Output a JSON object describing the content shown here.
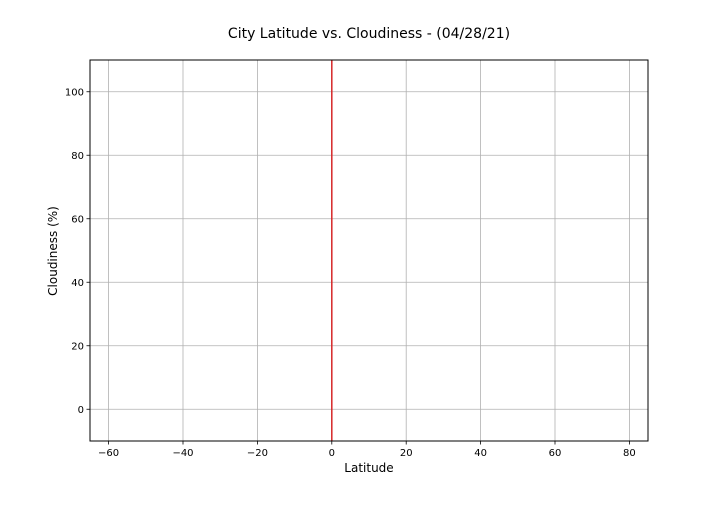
{
  "chart_data": {
    "type": "scatter",
    "title": "City Latitude vs. Cloudiness - (04/28/21)",
    "xlabel": "Latitude",
    "ylabel": "Cloudiness (%)",
    "xlim": [
      -65,
      85
    ],
    "ylim": [
      -10,
      110
    ],
    "x_ticks": [
      -60,
      -40,
      -20,
      0,
      20,
      40,
      60,
      80
    ],
    "y_ticks": [
      0,
      20,
      40,
      60,
      80,
      100
    ],
    "grid": true,
    "points": [],
    "reference_line": {
      "orientation": "vertical",
      "x": 0,
      "color": "#d62728"
    }
  }
}
